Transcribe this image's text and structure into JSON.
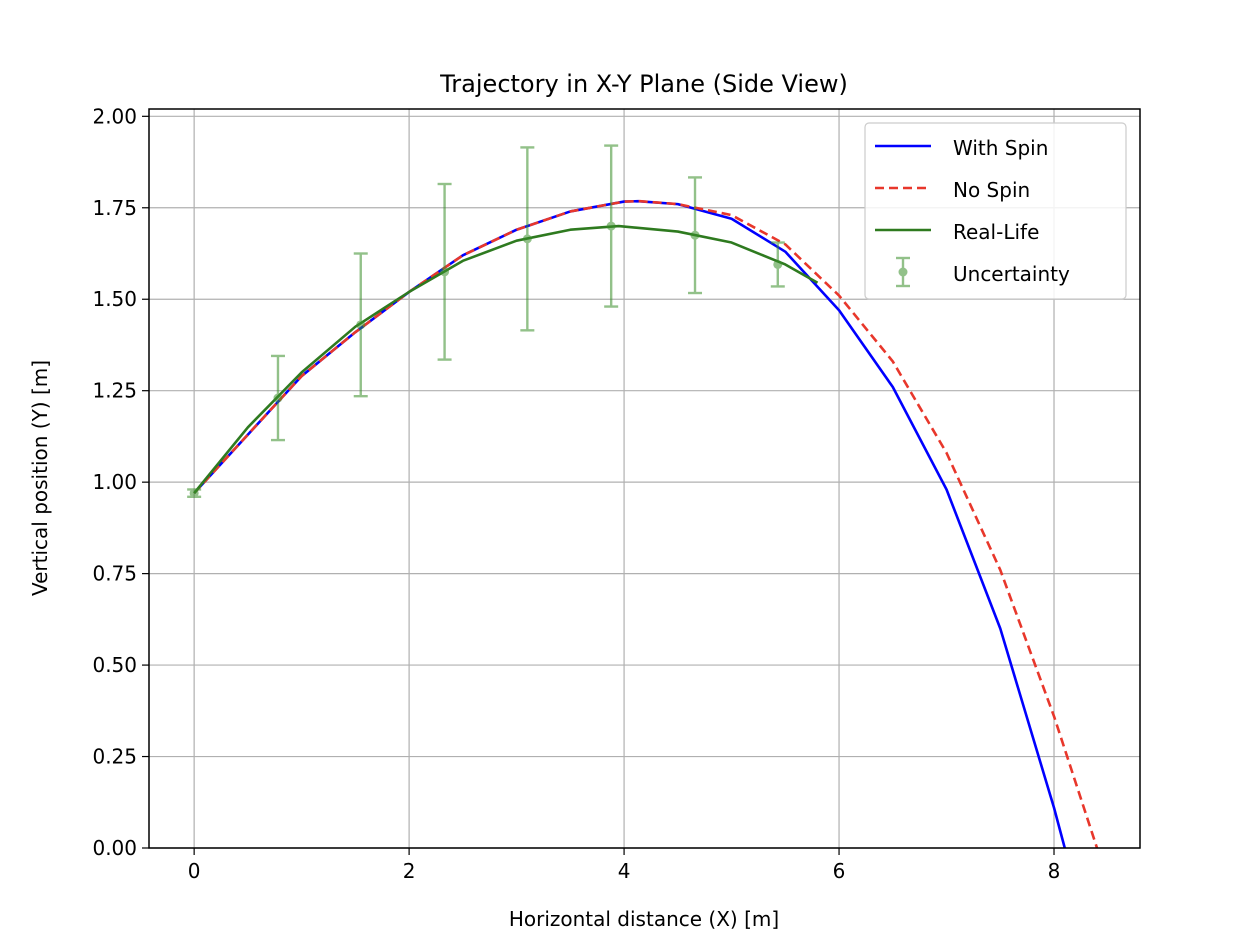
{
  "chart_data": {
    "type": "line",
    "title": "Trajectory in X-Y Plane (Side View)",
    "xlabel": "Horizontal distance (X) [m]",
    "ylabel": "Vertical position (Y) [m]",
    "xlim": [
      -0.42,
      8.8
    ],
    "ylim": [
      0,
      2.02
    ],
    "xticks": [
      0,
      2,
      4,
      6,
      8
    ],
    "yticks": [
      0.0,
      0.25,
      0.5,
      0.75,
      1.0,
      1.25,
      1.5,
      1.75,
      2.0
    ],
    "xtick_labels": [
      "0",
      "2",
      "4",
      "6",
      "8"
    ],
    "ytick_labels": [
      "0.00",
      "0.25",
      "0.50",
      "0.75",
      "1.00",
      "1.25",
      "1.50",
      "1.75",
      "2.00"
    ],
    "grid": true,
    "legend_position": "top-right",
    "series": [
      {
        "name": "With Spin",
        "style": "solid",
        "color": "#0000ff",
        "x": [
          0,
          0.5,
          1.0,
          1.5,
          2.0,
          2.5,
          3.0,
          3.5,
          4.0,
          4.13,
          4.5,
          5.0,
          5.5,
          6.0,
          6.5,
          7.0,
          7.5,
          8.0,
          8.1
        ],
        "y": [
          0.97,
          1.13,
          1.29,
          1.41,
          1.52,
          1.62,
          1.69,
          1.74,
          1.767,
          1.768,
          1.76,
          1.72,
          1.63,
          1.47,
          1.26,
          0.98,
          0.6,
          0.11,
          0.0
        ]
      },
      {
        "name": "No Spin",
        "style": "dashed",
        "color": "#e8372b",
        "x": [
          0,
          0.5,
          1.0,
          1.5,
          2.0,
          2.5,
          3.0,
          3.5,
          4.0,
          4.15,
          4.5,
          5.0,
          5.5,
          6.0,
          6.5,
          7.0,
          7.5,
          8.0,
          8.4
        ],
        "y": [
          0.97,
          1.13,
          1.29,
          1.41,
          1.52,
          1.62,
          1.69,
          1.74,
          1.767,
          1.768,
          1.76,
          1.73,
          1.65,
          1.51,
          1.33,
          1.08,
          0.76,
          0.36,
          0.0
        ]
      },
      {
        "name": "Real-Life",
        "style": "solid",
        "color": "#2e7a1f",
        "x": [
          0,
          0.5,
          1.0,
          1.5,
          2.0,
          2.5,
          3.0,
          3.5,
          3.95,
          4.5,
          5.0,
          5.5,
          5.8
        ],
        "y": [
          0.97,
          1.15,
          1.3,
          1.425,
          1.52,
          1.605,
          1.66,
          1.69,
          1.7,
          1.685,
          1.655,
          1.595,
          1.545
        ]
      }
    ],
    "uncertainty": {
      "name": "Uncertainty",
      "color": "#3a8f2a",
      "points": [
        {
          "x": 0.0,
          "y": 0.97,
          "err": 0.01
        },
        {
          "x": 0.78,
          "y": 1.23,
          "err": 0.115
        },
        {
          "x": 1.55,
          "y": 1.43,
          "err": 0.195
        },
        {
          "x": 2.33,
          "y": 1.575,
          "err": 0.24
        },
        {
          "x": 3.1,
          "y": 1.665,
          "err": 0.25
        },
        {
          "x": 3.88,
          "y": 1.7,
          "err": 0.22
        },
        {
          "x": 4.66,
          "y": 1.675,
          "err": 0.158
        },
        {
          "x": 5.43,
          "y": 1.595,
          "err": 0.06
        }
      ]
    }
  }
}
